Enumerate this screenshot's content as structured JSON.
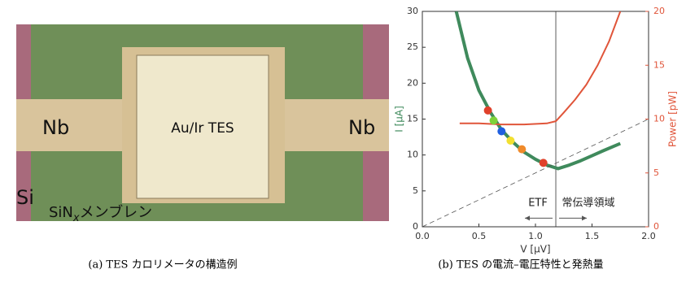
{
  "photo": {
    "labels": {
      "nb_left": "Nb",
      "tes": "Au/Ir TES",
      "nb_right": "Nb",
      "si": "Si",
      "sin": "SiN",
      "sin_sub": "x",
      "membrane": "メンブレン"
    }
  },
  "captions": {
    "a": "(a) TES カロリメータの構造例",
    "b": "(b) TES の電流–電圧特性と発熱量"
  },
  "chart_data": {
    "type": "line",
    "xlabel": "V [μV]",
    "ylabel": "I [μA]",
    "y2label": "Power [pW]",
    "xlim": [
      0,
      2
    ],
    "ylim": [
      0,
      30
    ],
    "y2lim": [
      0,
      20
    ],
    "xticks": [
      {
        "value": 0,
        "label": "0.0"
      },
      0.5,
      {
        "value": 1,
        "label": "1.0"
      },
      1.5,
      {
        "value": 2,
        "label": "2.0"
      }
    ],
    "yticks": [
      0,
      5,
      10,
      15,
      20,
      25,
      30
    ],
    "y2ticks": [
      0,
      5,
      10,
      15,
      20
    ],
    "series": [
      {
        "color": "#3f8a5c",
        "x": [
          0.3,
          0.4,
          0.5,
          0.6,
          0.7,
          0.8,
          0.9,
          1.0,
          1.1,
          1.2,
          1.3,
          1.4,
          1.5,
          1.6,
          1.75
        ],
        "values": [
          30,
          23.5,
          19,
          16,
          13.5,
          11.8,
          10.4,
          9.4,
          8.6,
          8.1,
          8.6,
          9.2,
          9.9,
          10.6,
          11.6
        ]
      },
      {
        "color": "#e0553a",
        "axis": "y2",
        "x": [
          0.33,
          0.5,
          0.7,
          0.9,
          1.1,
          1.18,
          1.25,
          1.35,
          1.45,
          1.55,
          1.65,
          1.75
        ],
        "values": [
          9.6,
          9.6,
          9.5,
          9.5,
          9.6,
          9.8,
          10.6,
          11.8,
          13.2,
          15,
          17.2,
          20
        ]
      },
      {
        "color": "#555555",
        "dashed": true,
        "x": [
          0,
          2
        ],
        "values": [
          0,
          15
        ]
      }
    ],
    "vline": 1.18,
    "points": {
      "x": [
        0.58,
        0.63,
        0.7,
        0.78,
        0.88,
        1.07
      ],
      "y": [
        16.2,
        14.8,
        13.3,
        12,
        10.8,
        8.9
      ],
      "colors": [
        "#e0402a",
        "#7ed23a",
        "#1f5fe0",
        "#f2e030",
        "#f08a2a",
        "#e0402a"
      ]
    },
    "annotations": {
      "etf": "ETF",
      "normal": "常伝導領域"
    }
  }
}
